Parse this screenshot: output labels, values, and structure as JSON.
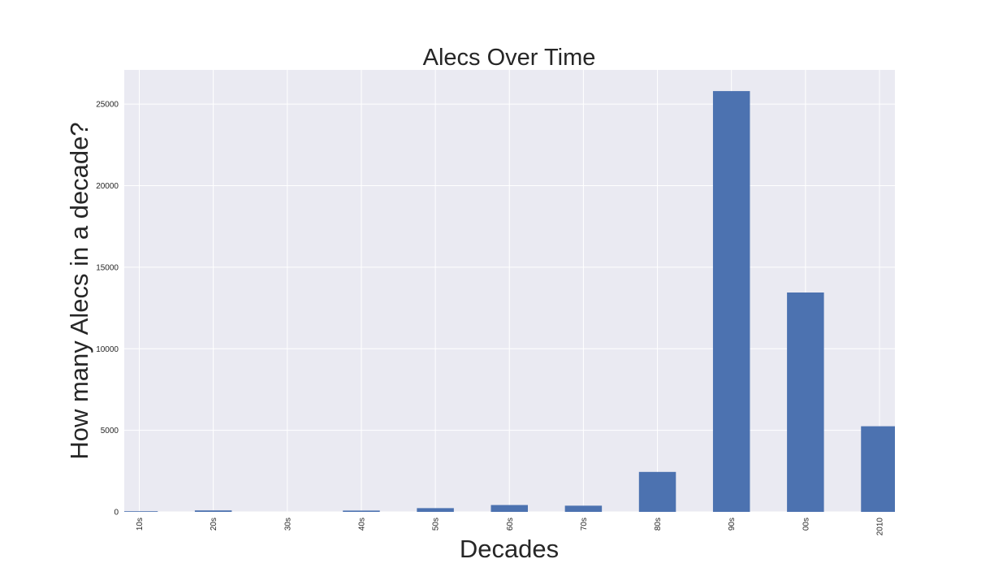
{
  "chart_data": {
    "type": "bar",
    "title": "Alecs Over Time",
    "xlabel": "Decades",
    "ylabel": "How many Alecs in a decade?",
    "categories": [
      "10s",
      "20s",
      "30s",
      "40s",
      "50s",
      "60s",
      "70s",
      "80s",
      "90s",
      "00s",
      "2010"
    ],
    "values": [
      40,
      90,
      0,
      80,
      230,
      420,
      380,
      2450,
      25800,
      13450,
      5250
    ],
    "ylim": [
      0,
      27100
    ],
    "yticks": [
      0,
      5000,
      10000,
      15000,
      20000,
      25000
    ],
    "grid": true,
    "bar_color": "#4c72b0",
    "background_color": "#eaeaf2",
    "grid_color": "#ffffff"
  }
}
